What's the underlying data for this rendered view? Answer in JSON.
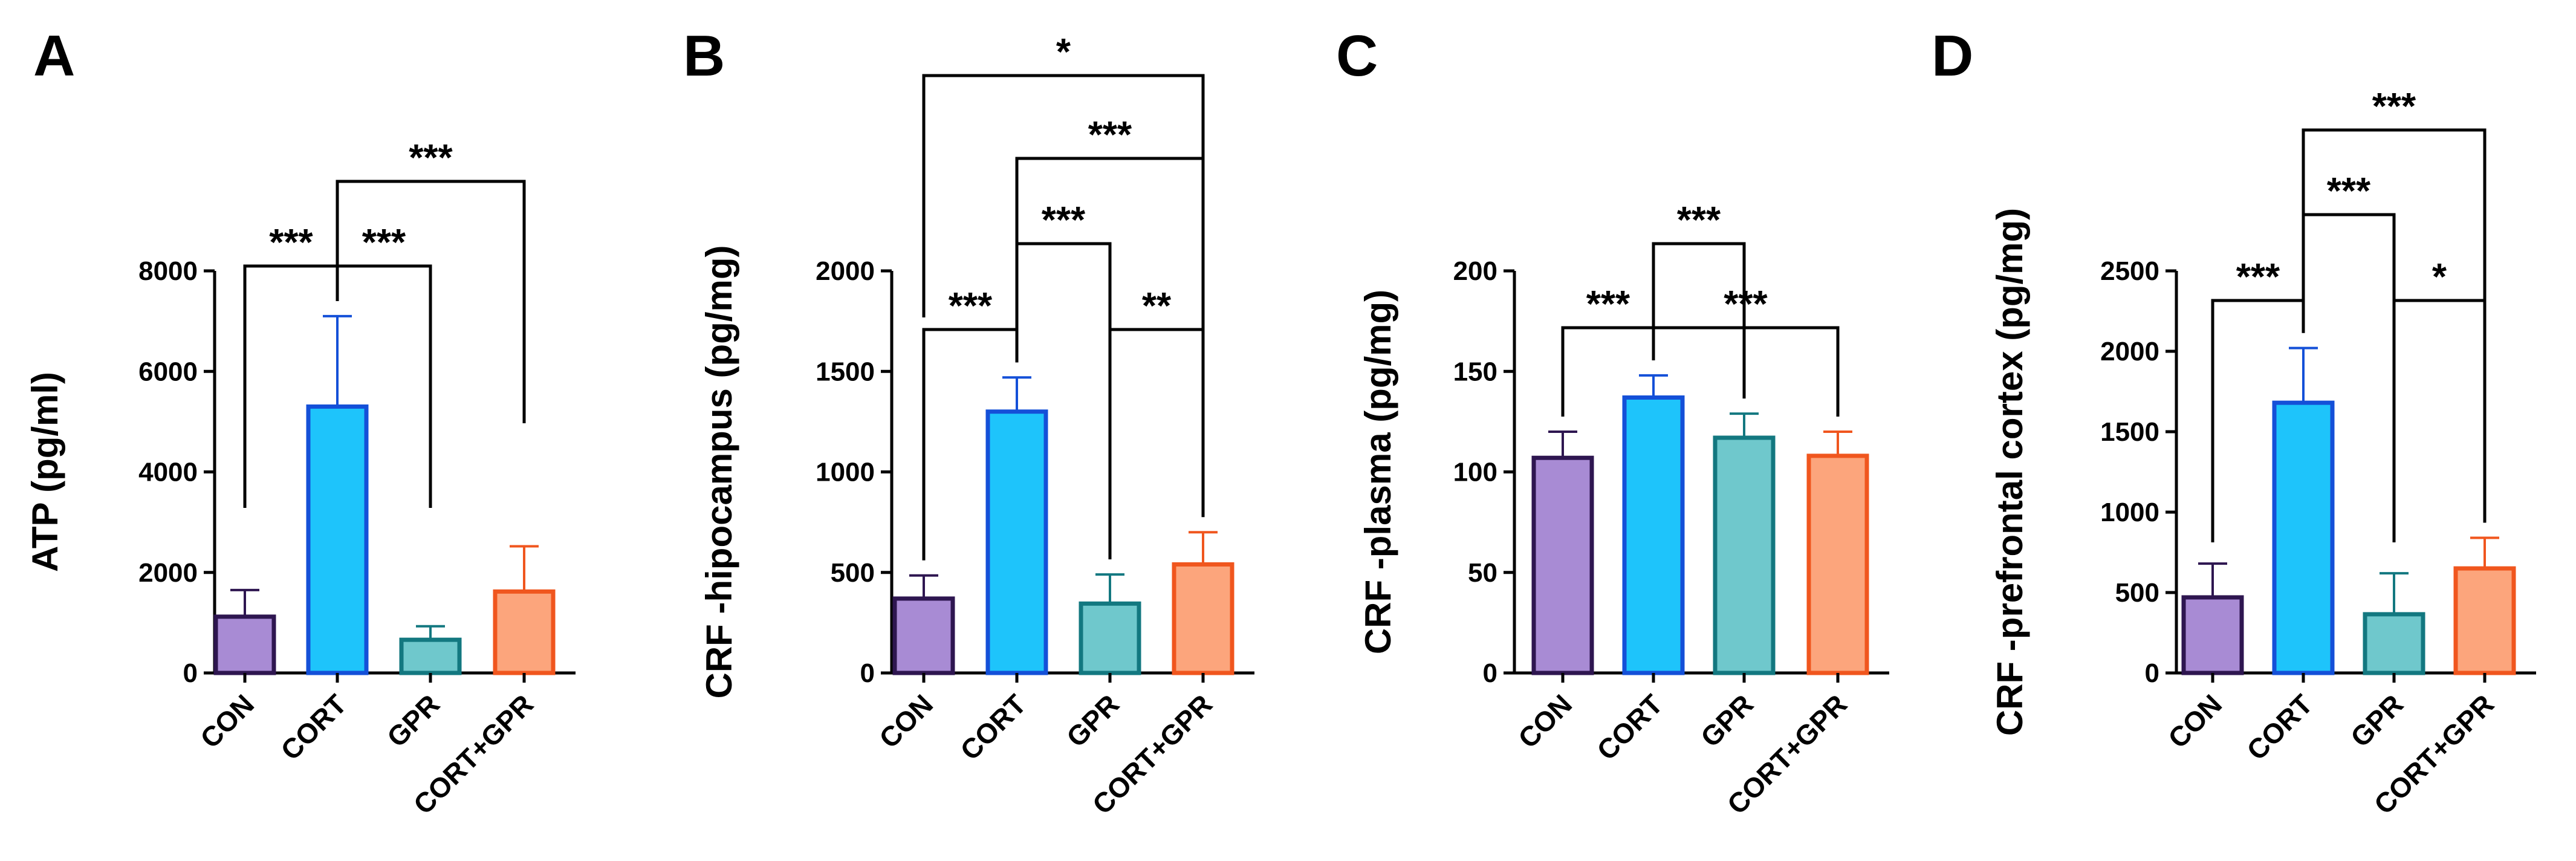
{
  "chart_data": [
    {
      "type": "bar",
      "panel": "A",
      "ylabel": "ATP (pg/ml)",
      "categories": [
        "CON",
        "CORT",
        "GPR",
        "CORT+GPR"
      ],
      "values": [
        1120,
        5300,
        660,
        1620
      ],
      "errors": [
        530,
        1800,
        270,
        900
      ],
      "ylim": [
        0,
        8000
      ],
      "yticks": [
        "0",
        "2000",
        "4000",
        "6000",
        "8000"
      ],
      "ytick_values": [
        0,
        2000,
        4000,
        6000,
        8000
      ],
      "significance": [
        {
          "groups": [
            0,
            1
          ],
          "label": "***"
        },
        {
          "groups": [
            1,
            2
          ],
          "label": "***"
        },
        {
          "groups": [
            1,
            3
          ],
          "label": "***"
        }
      ]
    },
    {
      "type": "bar",
      "panel": "B",
      "ylabel": "CRF -hipocampus (pg/mg)",
      "categories": [
        "CON",
        "CORT",
        "GPR",
        "CORT+GPR"
      ],
      "values": [
        370,
        1300,
        345,
        540
      ],
      "errors": [
        115,
        170,
        145,
        160
      ],
      "ylim": [
        0,
        2000
      ],
      "yticks": [
        "0",
        "500",
        "1000",
        "1500",
        "2000"
      ],
      "ytick_values": [
        0,
        500,
        1000,
        1500,
        2000
      ],
      "significance": [
        {
          "groups": [
            0,
            1
          ],
          "label": "***"
        },
        {
          "groups": [
            2,
            3
          ],
          "label": "**"
        },
        {
          "groups": [
            1,
            2
          ],
          "label": "***"
        },
        {
          "groups": [
            1,
            3
          ],
          "label": "***"
        },
        {
          "groups": [
            0,
            3
          ],
          "label": "*"
        }
      ]
    },
    {
      "type": "bar",
      "panel": "C",
      "ylabel": "CRF -plasma (pg/mg)",
      "categories": [
        "CON",
        "CORT",
        "GPR",
        "CORT+GPR"
      ],
      "values": [
        107,
        137,
        117,
        108
      ],
      "errors": [
        13,
        11,
        12,
        12
      ],
      "ylim": [
        0,
        200
      ],
      "yticks": [
        "0",
        "50",
        "100",
        "150",
        "200"
      ],
      "ytick_values": [
        0,
        50,
        100,
        150,
        200
      ],
      "significance": [
        {
          "groups": [
            0,
            1
          ],
          "label": "***"
        },
        {
          "groups": [
            1,
            2
          ],
          "label": "***"
        },
        {
          "groups": [
            1,
            3
          ],
          "label": "***"
        }
      ]
    },
    {
      "type": "bar",
      "panel": "D",
      "ylabel": "CRF -prefrontal cortex (pg/mg)",
      "categories": [
        "CON",
        "CORT",
        "GPR",
        "CORT+GPR"
      ],
      "values": [
        470,
        1680,
        365,
        650
      ],
      "errors": [
        210,
        340,
        255,
        190
      ],
      "ylim": [
        0,
        2500
      ],
      "yticks": [
        "0",
        "500",
        "1000",
        "1500",
        "2000",
        "2500"
      ],
      "ytick_values": [
        0,
        500,
        1000,
        1500,
        2000,
        2500
      ],
      "significance": [
        {
          "groups": [
            0,
            1
          ],
          "label": "***"
        },
        {
          "groups": [
            2,
            3
          ],
          "label": "*"
        },
        {
          "groups": [
            1,
            2
          ],
          "label": "***"
        },
        {
          "groups": [
            1,
            3
          ],
          "label": "***"
        }
      ]
    }
  ],
  "colors": {
    "fills": [
      "#a88bd4",
      "#1ec4fb",
      "#6fc8cc",
      "#fca57c"
    ],
    "edges": [
      "#2e1650",
      "#1450d8",
      "#137880",
      "#f0561e"
    ]
  }
}
